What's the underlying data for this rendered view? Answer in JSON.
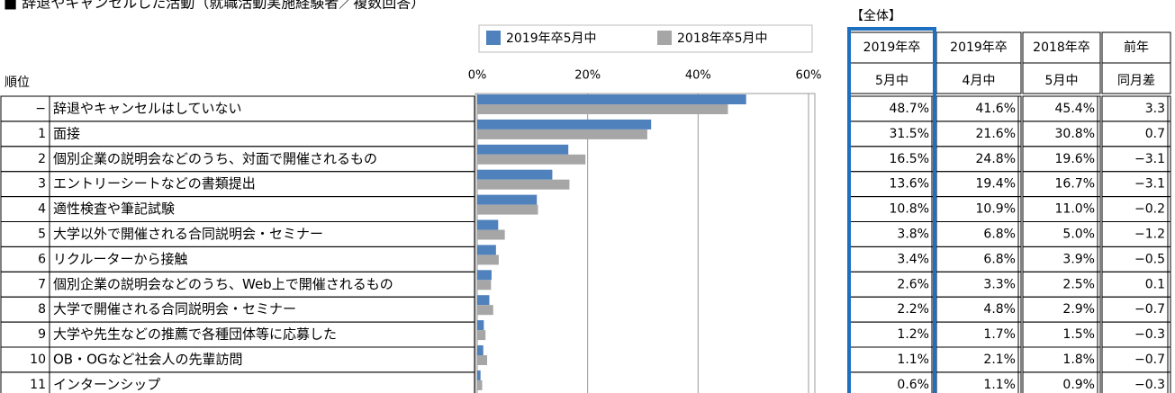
{
  "title": "■ 辞退やキャンセルした活動（就職活動実施経験者／複数回答）",
  "total_label": "【全体】",
  "rank_header": "順位",
  "ranks": [
    "−",
    "1",
    "2",
    "3",
    "4",
    "5",
    "6",
    "7",
    "8",
    "9",
    "10",
    "11"
  ],
  "chart_data": {
    "type": "bar",
    "orientation": "horizontal",
    "categories": [
      "辞退やキャンセルはしていない",
      "面接",
      "個別企業の説明会などのうち、対面で開催されるもの",
      "エントリーシートなどの書類提出",
      "適性検査や筆記試験",
      "大学以外で開催される合同説明会・セミナー",
      "リクルーターから接触",
      "個別企業の説明会などのうち、Web上で開催されるもの",
      "大学で開催される合同説明会・セミナー",
      "大学や先生などの推薦で各種団体等に応募した",
      "OB・OGなど社会人の先輩訪問",
      "インターンシップ"
    ],
    "series": [
      {
        "name": "2019年卒5月中",
        "color": "#4f81bd",
        "values": [
          48.7,
          31.5,
          16.5,
          13.6,
          10.8,
          3.8,
          3.4,
          2.6,
          2.2,
          1.2,
          1.1,
          0.6
        ],
        "value_labels": [
          "48.7%",
          "31.5%",
          "16.5%",
          "13.6%",
          "10.8%",
          "3.8%",
          "3.4%",
          "2.6%",
          "2.2%",
          "1.2%",
          "1.1%",
          "0.6%"
        ]
      },
      {
        "name": "2018年卒5月中",
        "color": "#a6a6a6",
        "values": [
          45.4,
          30.8,
          19.6,
          16.7,
          11.0,
          5.0,
          3.9,
          2.5,
          2.9,
          1.5,
          1.8,
          0.9
        ],
        "value_labels": [
          "45.4%",
          "30.8%",
          "19.6%",
          "16.7%",
          "11.0%",
          "5.0%",
          "3.9%",
          "2.5%",
          "2.9%",
          "1.5%",
          "1.8%",
          "0.9%"
        ]
      }
    ],
    "xlim": [
      0,
      60
    ],
    "xticks": [
      {
        "value": 0,
        "label": "0%"
      },
      {
        "value": 20,
        "label": "20%"
      },
      {
        "value": 40,
        "label": "40%"
      },
      {
        "value": 60,
        "label": "60%"
      }
    ],
    "grid": true
  },
  "table": {
    "headers": [
      [
        "2019年卒",
        "5月中"
      ],
      [
        "2019年卒",
        "4月中"
      ],
      [
        "2018年卒",
        "5月中"
      ],
      [
        "前年",
        "同月差"
      ]
    ],
    "april": {
      "values": [
        41.6,
        21.6,
        24.8,
        19.4,
        10.9,
        6.8,
        6.8,
        3.3,
        4.8,
        1.7,
        2.1,
        1.1
      ],
      "value_labels": [
        "41.6%",
        "21.6%",
        "24.8%",
        "19.4%",
        "10.9%",
        "6.8%",
        "6.8%",
        "3.3%",
        "4.8%",
        "1.7%",
        "2.1%",
        "1.1%"
      ]
    },
    "diff": {
      "values": [
        3.3,
        0.7,
        -3.1,
        -3.1,
        -0.2,
        -1.2,
        -0.5,
        0.1,
        -0.7,
        -0.3,
        -0.7,
        -0.3
      ],
      "value_labels": [
        "3.3",
        "0.7",
        "−3.1",
        "−3.1",
        "−0.2",
        "−1.2",
        "−0.5",
        "0.1",
        "−0.7",
        "−0.3",
        "−0.7",
        "−0.3"
      ]
    }
  }
}
